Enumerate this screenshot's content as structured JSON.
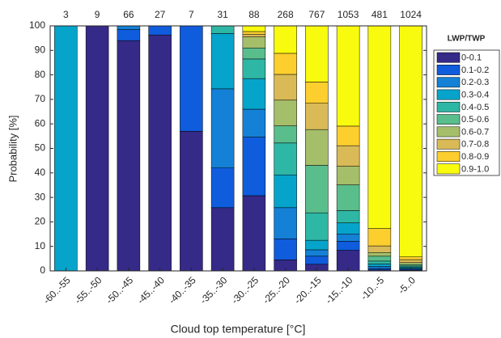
{
  "chart_data": {
    "type": "stacked_bar",
    "x_label": "Cloud top temperature [°C]",
    "y_label": "Probability [%]",
    "legend_title": "LWP/TWP",
    "legend_position": "right",
    "categories": [
      "-60..-55",
      "-55..-50",
      "-50..-45",
      "-45..-40",
      "-40..-35",
      "-35..-30",
      "-30..-25",
      "-25..-20",
      "-20..-15",
      "-15..-10",
      "-10..-5",
      "-5..0"
    ],
    "bar_labels": [
      3,
      9,
      66,
      27,
      7,
      31,
      88,
      268,
      767,
      1053,
      481,
      1024
    ],
    "ylim": [
      0,
      100
    ],
    "yticks": [
      0,
      10,
      20,
      30,
      40,
      50,
      60,
      70,
      80,
      90,
      100
    ],
    "series": [
      {
        "name": "0-0.1",
        "color": "#352a87",
        "values": [
          0,
          100,
          94,
          96.3,
          57,
          25.8,
          30.7,
          4.5,
          2.7,
          8.4,
          0.4,
          0.3
        ]
      },
      {
        "name": "0.1-0.2",
        "color": "#0f5cdd",
        "values": [
          0,
          0,
          4.5,
          3.7,
          43,
          16.2,
          23.9,
          8.6,
          3.3,
          3.7,
          0.6,
          0.4
        ]
      },
      {
        "name": "0.2-0.3",
        "color": "#1481d6",
        "values": [
          0,
          0,
          1.5,
          0,
          0,
          32.3,
          11.4,
          12.7,
          2.6,
          3,
          0.8,
          0.3
        ]
      },
      {
        "name": "0.3-0.4",
        "color": "#06a4ca",
        "values": [
          100,
          0,
          0,
          0,
          0,
          22.6,
          12.5,
          13.4,
          3.9,
          4.5,
          1,
          0.5
        ]
      },
      {
        "name": "0.4-0.5",
        "color": "#2eb7a4",
        "values": [
          0,
          0,
          0,
          0,
          0,
          3.1,
          8,
          13,
          11.2,
          5,
          1.2,
          0.5
        ]
      },
      {
        "name": "0.5-0.6",
        "color": "#59bd8c",
        "values": [
          0,
          0,
          0,
          0,
          0,
          0,
          4.5,
          7,
          19.4,
          10.5,
          2,
          0.6
        ]
      },
      {
        "name": "0.6-0.7",
        "color": "#a5be6a",
        "values": [
          0,
          0,
          0,
          0,
          0,
          0,
          4.5,
          10.5,
          14.6,
          7.6,
          1.5,
          0.8
        ]
      },
      {
        "name": "0.7-0.8",
        "color": "#d9ba56",
        "values": [
          0,
          0,
          0,
          0,
          0,
          0,
          1.1,
          10.5,
          10.7,
          8.4,
          2.7,
          1.2
        ]
      },
      {
        "name": "0.8-0.9",
        "color": "#fcce2e",
        "values": [
          0,
          0,
          0,
          0,
          0,
          0,
          1.1,
          8.6,
          8.7,
          8,
          7.1,
          1.1
        ]
      },
      {
        "name": "0.9-1.0",
        "color": "#f9fb0e",
        "values": [
          0,
          0,
          0,
          0,
          0,
          0,
          2.3,
          11.2,
          22.9,
          40.9,
          82.7,
          94.3
        ]
      }
    ]
  }
}
